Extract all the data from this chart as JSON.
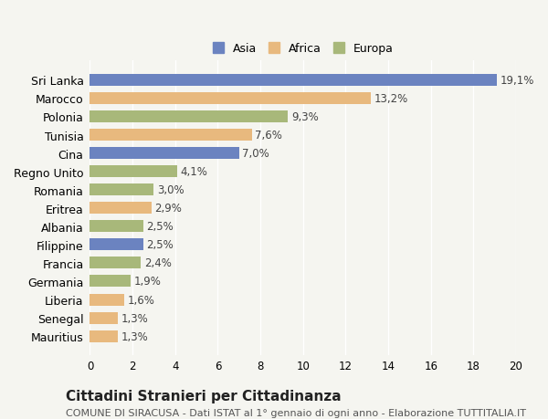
{
  "categories": [
    "Sri Lanka",
    "Marocco",
    "Polonia",
    "Tunisia",
    "Cina",
    "Regno Unito",
    "Romania",
    "Eritrea",
    "Albania",
    "Filippine",
    "Francia",
    "Germania",
    "Liberia",
    "Senegal",
    "Mauritius"
  ],
  "values": [
    19.1,
    13.2,
    9.3,
    7.6,
    7.0,
    4.1,
    3.0,
    2.9,
    2.5,
    2.5,
    2.4,
    1.9,
    1.6,
    1.3,
    1.3
  ],
  "labels": [
    "19,1%",
    "13,2%",
    "9,3%",
    "7,6%",
    "7,0%",
    "4,1%",
    "3,0%",
    "2,9%",
    "2,5%",
    "2,5%",
    "2,4%",
    "1,9%",
    "1,6%",
    "1,3%",
    "1,3%"
  ],
  "continents": [
    "Asia",
    "Africa",
    "Europa",
    "Africa",
    "Asia",
    "Europa",
    "Europa",
    "Africa",
    "Europa",
    "Asia",
    "Europa",
    "Europa",
    "Africa",
    "Africa",
    "Africa"
  ],
  "colors": {
    "Asia": "#6b83c0",
    "Africa": "#e8b97e",
    "Europa": "#a8b87a"
  },
  "legend_colors": {
    "Asia": "#6b83c0",
    "Africa": "#e8b97e",
    "Europa": "#a8b87a"
  },
  "xlim": [
    0,
    20
  ],
  "xticks": [
    0,
    2,
    4,
    6,
    8,
    10,
    12,
    14,
    16,
    18,
    20
  ],
  "title": "Cittadini Stranieri per Cittadinanza",
  "subtitle": "COMUNE DI SIRACUSA - Dati ISTAT al 1° gennaio di ogni anno - Elaborazione TUTTITALIA.IT",
  "background_color": "#f5f5f0",
  "bar_height": 0.65,
  "label_fontsize": 8.5,
  "title_fontsize": 11,
  "subtitle_fontsize": 8
}
